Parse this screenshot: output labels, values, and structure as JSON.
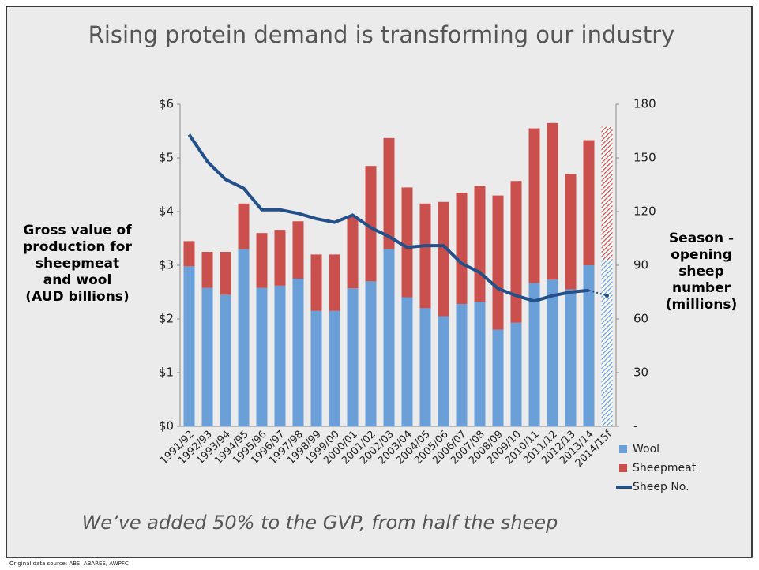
{
  "chart_data": {
    "type": "stacked-bar-line",
    "title": "Rising protein demand is transforming our industry",
    "ylabel": "Gross value of production for sheepmeat and wool (AUD billions)",
    "y2label": "Season -opening sheep number (millions)",
    "annotation": "We’ve added 50% to the GVP, from half the sheep",
    "source": "Original data source: ABS, ABARES, AWPFC",
    "categories": [
      "1991/92",
      "1992/93",
      "1993/94",
      "1994/95",
      "1995/96",
      "1996/97",
      "1997/98",
      "1998/99",
      "1999/00",
      "2000/01",
      "2001/02",
      "2002/03",
      "2003/04",
      "2004/05",
      "2005/06",
      "2006/07",
      "2007/08",
      "2008/09",
      "2009/10",
      "2010/11",
      "2011/12",
      "2012/13",
      "2013/14",
      "2014/15f"
    ],
    "series": [
      {
        "name": "Wool",
        "color": "#6a9fd8",
        "values": [
          2.98,
          2.58,
          2.45,
          3.3,
          2.58,
          2.62,
          2.75,
          2.15,
          2.15,
          2.57,
          2.7,
          3.3,
          2.4,
          2.2,
          2.05,
          2.28,
          2.32,
          1.8,
          1.93,
          2.67,
          2.73,
          2.55,
          3.0,
          3.1
        ]
      },
      {
        "name": "Sheepmeat",
        "color": "#c9504d",
        "values": [
          0.47,
          0.67,
          0.8,
          0.85,
          1.02,
          1.04,
          1.07,
          1.05,
          1.05,
          1.33,
          2.15,
          2.07,
          2.05,
          1.95,
          2.13,
          2.07,
          2.16,
          2.5,
          2.64,
          2.88,
          2.92,
          2.15,
          2.33,
          2.48
        ]
      },
      {
        "name": "Sheep No.",
        "color": "#24508a",
        "axis": "y2",
        "values": [
          163,
          148,
          138,
          133,
          121,
          121,
          119,
          116,
          114,
          118,
          111,
          106,
          100,
          101,
          101,
          91,
          86,
          77,
          73,
          70,
          73,
          75,
          76,
          73
        ]
      }
    ],
    "ylim": [
      0,
      6
    ],
    "yticks": [
      {
        "value": 0,
        "label": "$0"
      },
      {
        "value": 1,
        "label": "$1"
      },
      {
        "value": 2,
        "label": "$2"
      },
      {
        "value": 3,
        "label": "$3"
      },
      {
        "value": 4,
        "label": "$4"
      },
      {
        "value": 5,
        "label": "$5"
      },
      {
        "value": 6,
        "label": "$6"
      }
    ],
    "y2lim": [
      0,
      180
    ],
    "y2ticks": [
      {
        "value": 0,
        "label": "-"
      },
      30,
      60,
      90,
      120,
      150,
      180
    ]
  }
}
